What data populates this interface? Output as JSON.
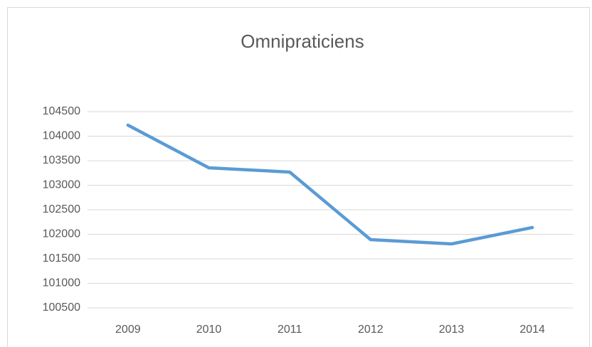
{
  "chart_data": {
    "type": "line",
    "title": "Omnipraticiens",
    "categories": [
      "2009",
      "2010",
      "2011",
      "2012",
      "2013",
      "2014"
    ],
    "series": [
      {
        "name": "Omnipraticiens",
        "color": "#5b9bd5",
        "values": [
          104225,
          103355,
          103268,
          101891,
          101804,
          102138
        ]
      }
    ],
    "ylim": [
      100500,
      104500
    ],
    "yticks": [
      100500,
      101000,
      101500,
      102000,
      102500,
      103000,
      103500,
      104000,
      104500
    ],
    "grid": true
  }
}
